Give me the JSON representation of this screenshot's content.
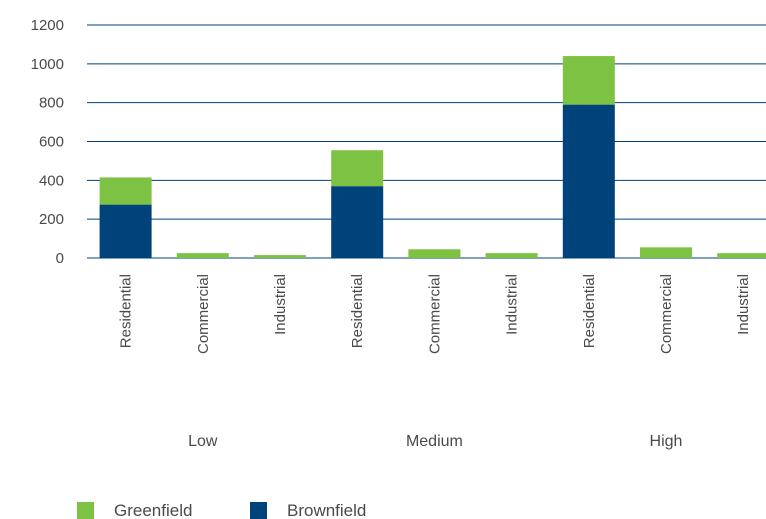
{
  "chart_data": {
    "type": "bar",
    "stacked": true,
    "categories": [
      "Residential",
      "Commercial",
      "Industrial",
      "Residential",
      "Commercial",
      "Industrial",
      "Residential",
      "Commercial",
      "Industrial"
    ],
    "groups": [
      {
        "label": "Low",
        "span": [
          0,
          2
        ]
      },
      {
        "label": "Medium",
        "span": [
          3,
          5
        ]
      },
      {
        "label": "High",
        "span": [
          6,
          8
        ]
      }
    ],
    "series": [
      {
        "name": "Brownfield",
        "color": "#00427a",
        "values": [
          275,
          0,
          0,
          370,
          0,
          0,
          790,
          0,
          0
        ]
      },
      {
        "name": "Greenfield",
        "color": "#7dc242",
        "values": [
          140,
          25,
          15,
          185,
          45,
          25,
          250,
          55,
          25
        ]
      }
    ],
    "ylim": [
      0,
      1200
    ],
    "yticks": [
      0,
      200,
      400,
      600,
      800,
      1000,
      1200
    ],
    "grid": true,
    "legend": {
      "position": "bottom-left",
      "items": [
        {
          "label": "Greenfield",
          "color": "#7dc242"
        },
        {
          "label": "Brownfield",
          "color": "#00427a"
        }
      ]
    },
    "gridline_color": "#00427a"
  }
}
